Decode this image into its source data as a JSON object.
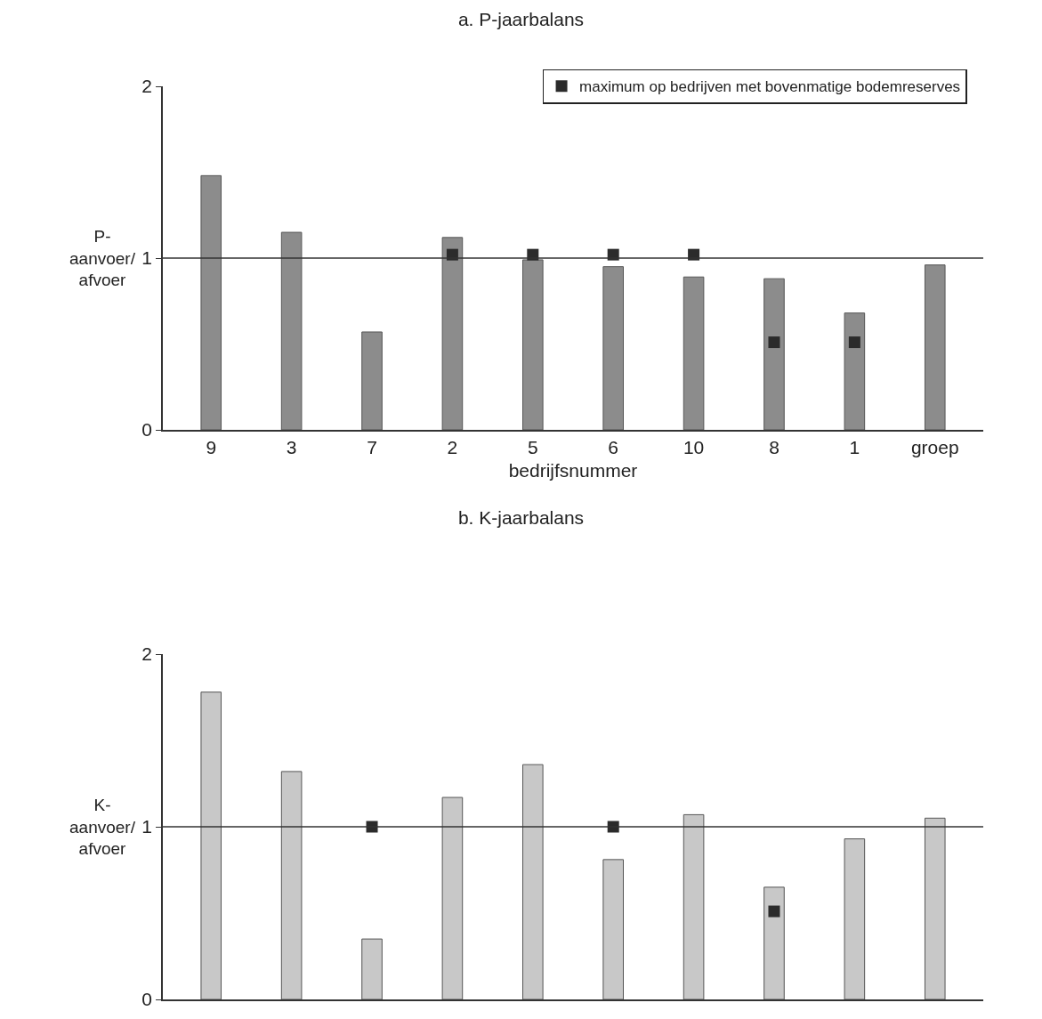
{
  "chart_data": [
    {
      "type": "bar",
      "title": "a. P-jaarbalans",
      "xlabel": "bedrijfsnummer",
      "ylabel": "P-\naanvoer/\nafvoer",
      "categories": [
        "9",
        "3",
        "7",
        "2",
        "5",
        "6",
        "10",
        "8",
        "1",
        "groep"
      ],
      "series": [
        {
          "color": "#8c8c8c",
          "values": [
            1.48,
            1.15,
            0.57,
            1.12,
            0.99,
            0.95,
            0.89,
            0.88,
            0.68,
            0.96
          ]
        },
        {
          "type": "scatter",
          "name": "maximum op bedrijven met bovenmatige bodemreserves",
          "color": "#2b2b2b",
          "values": [
            null,
            null,
            null,
            1.02,
            1.02,
            1.02,
            1.02,
            0.51,
            0.51,
            null
          ]
        }
      ],
      "ylim": [
        0,
        2
      ],
      "yticks": [
        0,
        1,
        2
      ],
      "ref_lines": [
        {
          "axis": "y",
          "value": 1,
          "color": "#333333"
        }
      ],
      "marker": "square",
      "legend": "top right",
      "grid": false
    },
    {
      "type": "bar",
      "title": "b. K-jaarbalans",
      "ylabel": "K-\naanvoer/\nafvoer",
      "categories": [
        null,
        null,
        null,
        null,
        null,
        null,
        null,
        null,
        null,
        null
      ],
      "series": [
        {
          "color": "#c8c8c8",
          "values": [
            1.78,
            1.32,
            0.35,
            1.17,
            1.36,
            0.81,
            1.07,
            0.65,
            0.93,
            1.05
          ]
        },
        {
          "type": "scatter",
          "color": "#2b2b2b",
          "values": [
            null,
            null,
            1.0,
            null,
            null,
            1.0,
            null,
            0.51,
            null,
            null
          ]
        }
      ],
      "ylim": [
        0,
        2
      ],
      "yticks": [
        0,
        1,
        2
      ],
      "ref_lines": [
        {
          "axis": "y",
          "value": 1,
          "color": "#333333"
        }
      ],
      "marker": "square",
      "tick_labels": "y",
      "grid": false
    }
  ]
}
